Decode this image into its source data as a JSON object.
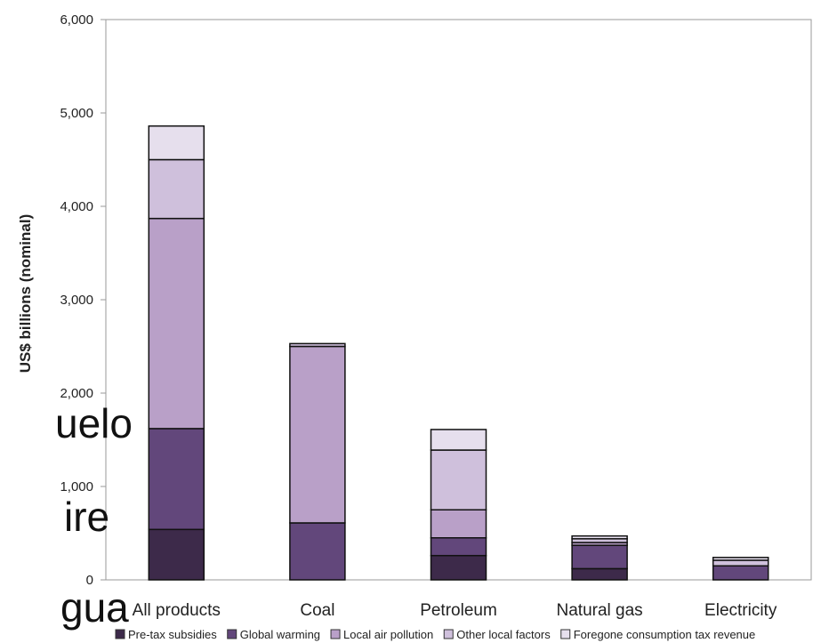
{
  "chart_data": {
    "type": "bar",
    "stacked": true,
    "categories": [
      "All products",
      "Coal",
      "Petroleum",
      "Natural gas",
      "Electricity"
    ],
    "series": [
      {
        "name": "Pre-tax subsidies",
        "color": "#3d2a4a",
        "values": [
          540,
          0,
          260,
          120,
          0
        ]
      },
      {
        "name": "Global warming",
        "color": "#62477b",
        "values": [
          1080,
          610,
          190,
          250,
          150
        ]
      },
      {
        "name": "Local air pollution",
        "color": "#b9a0c8",
        "values": [
          2250,
          1890,
          300,
          30,
          0
        ]
      },
      {
        "name": "Other local factors",
        "color": "#cfc0dc",
        "values": [
          630,
          30,
          640,
          40,
          60
        ]
      },
      {
        "name": "Foregone consumption tax revenue",
        "color": "#e6dfed",
        "values": [
          360,
          0,
          220,
          30,
          30
        ]
      }
    ],
    "ylabel": "US$ billions (nominal)",
    "ylim": [
      0,
      6000
    ],
    "yticks": [
      0,
      1000,
      2000,
      3000,
      4000,
      5000,
      6000
    ],
    "ytick_labels": [
      "0",
      "1,000",
      "2,000",
      "3,000",
      "4,000",
      "5,000",
      "6,000"
    ],
    "legend": "bottom",
    "grid": false
  },
  "overlay_text": [
    "uelo",
    "ire",
    "gua"
  ]
}
